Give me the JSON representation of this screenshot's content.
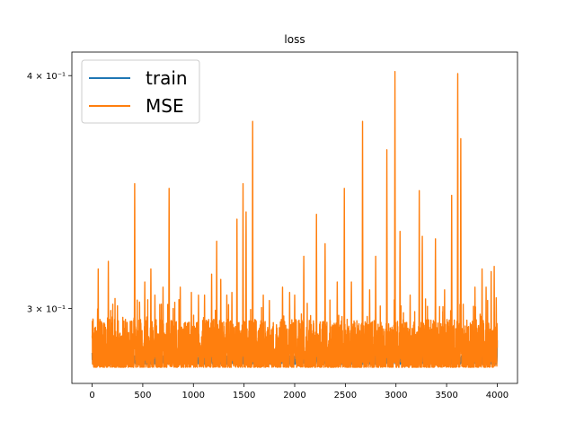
{
  "chart_data": {
    "type": "line",
    "title": "loss",
    "xlabel": "",
    "ylabel": "",
    "yscale": "log",
    "xlim": [
      -200,
      4200
    ],
    "ylim": [
      0.2735,
      0.4118
    ],
    "x_ticks": [
      {
        "value": 0,
        "label": "0"
      },
      {
        "value": 500,
        "label": "500"
      },
      {
        "value": 1000,
        "label": "1000"
      },
      {
        "value": 1500,
        "label": "1500"
      },
      {
        "value": 2000,
        "label": "2000"
      },
      {
        "value": 2500,
        "label": "2500"
      },
      {
        "value": 3000,
        "label": "3000"
      },
      {
        "value": 3500,
        "label": "3500"
      },
      {
        "value": 4000,
        "label": "4000"
      }
    ],
    "y_ticks": [
      {
        "value": 0.3,
        "label": "3 × 10⁻¹"
      },
      {
        "value": 0.4,
        "label": "4 × 10⁻¹"
      }
    ],
    "grid": false,
    "legend_position": "top-left",
    "series": [
      {
        "name": "train",
        "color": "#1f77b4",
        "n_points": 4001,
        "baseline": 0.2815,
        "noise_range": [
          0.28,
          0.283
        ],
        "spikes": [
          [
            0,
            0.284
          ],
          [
            3400,
            0.287
          ],
          [
            4000,
            0.2885
          ]
        ]
      },
      {
        "name": "MSE",
        "color": "#ff7f0e",
        "n_points": 4001,
        "floor": 0.279,
        "typical_range": [
          0.282,
          0.296
        ],
        "peaks": [
          [
            0,
            0.29
          ],
          [
            60,
            0.315
          ],
          [
            160,
            0.318
          ],
          [
            250,
            0.301
          ],
          [
            420,
            0.35
          ],
          [
            520,
            0.31
          ],
          [
            580,
            0.315
          ],
          [
            620,
            0.305
          ],
          [
            700,
            0.308
          ],
          [
            760,
            0.348
          ],
          [
            800,
            0.3
          ],
          [
            870,
            0.308
          ],
          [
            980,
            0.306
          ],
          [
            1050,
            0.305
          ],
          [
            1110,
            0.305
          ],
          [
            1180,
            0.313
          ],
          [
            1230,
            0.326
          ],
          [
            1270,
            0.311
          ],
          [
            1330,
            0.305
          ],
          [
            1380,
            0.306
          ],
          [
            1430,
            0.335
          ],
          [
            1490,
            0.35
          ],
          [
            1520,
            0.338
          ],
          [
            1585,
            0.378
          ],
          [
            1690,
            0.305
          ],
          [
            1750,
            0.303
          ],
          [
            1880,
            0.308
          ],
          [
            1950,
            0.306
          ],
          [
            2000,
            0.305
          ],
          [
            2090,
            0.32
          ],
          [
            2215,
            0.337
          ],
          [
            2300,
            0.325
          ],
          [
            2420,
            0.31
          ],
          [
            2490,
            0.348
          ],
          [
            2560,
            0.31
          ],
          [
            2670,
            0.378
          ],
          [
            2740,
            0.307
          ],
          [
            2800,
            0.32
          ],
          [
            2910,
            0.365
          ],
          [
            2990,
            0.402
          ],
          [
            3040,
            0.33
          ],
          [
            3140,
            0.305
          ],
          [
            3230,
            0.347
          ],
          [
            3260,
            0.328
          ],
          [
            3390,
            0.327
          ],
          [
            3480,
            0.307
          ],
          [
            3550,
            0.345
          ],
          [
            3610,
            0.401
          ],
          [
            3640,
            0.37
          ],
          [
            3780,
            0.308
          ],
          [
            3850,
            0.315
          ],
          [
            3890,
            0.308
          ],
          [
            3940,
            0.314
          ],
          [
            3970,
            0.316
          ],
          [
            3990,
            0.304
          ]
        ]
      }
    ]
  }
}
